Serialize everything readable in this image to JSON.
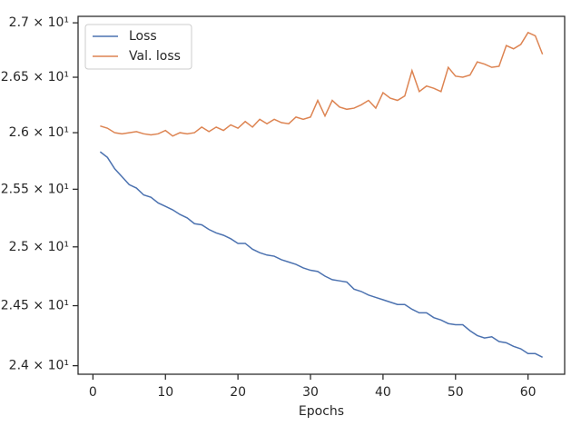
{
  "chart_data": {
    "type": "line",
    "x_label": "Epochs",
    "x": [
      1,
      2,
      3,
      4,
      5,
      6,
      7,
      8,
      9,
      10,
      11,
      12,
      13,
      14,
      15,
      16,
      17,
      18,
      19,
      20,
      21,
      22,
      23,
      24,
      25,
      26,
      27,
      28,
      29,
      30,
      31,
      32,
      33,
      34,
      35,
      36,
      37,
      38,
      39,
      40,
      41,
      42,
      43,
      44,
      45,
      46,
      47,
      48,
      49,
      50,
      51,
      52,
      53,
      54,
      55,
      56,
      57,
      58,
      59,
      60,
      61,
      62
    ],
    "series": [
      {
        "name": "Loss",
        "color": "#4c72b0",
        "values": [
          25.83,
          25.78,
          25.68,
          25.61,
          25.54,
          25.51,
          25.45,
          25.43,
          25.38,
          25.35,
          25.32,
          25.28,
          25.25,
          25.2,
          25.19,
          25.15,
          25.12,
          25.1,
          25.07,
          25.03,
          25.03,
          24.98,
          24.95,
          24.93,
          24.92,
          24.89,
          24.87,
          24.85,
          24.82,
          24.8,
          24.79,
          24.75,
          24.72,
          24.71,
          24.7,
          24.64,
          24.62,
          24.59,
          24.57,
          24.55,
          24.53,
          24.51,
          24.51,
          24.47,
          24.44,
          24.44,
          24.4,
          24.38,
          24.35,
          24.34,
          24.34,
          24.29,
          24.25,
          24.23,
          24.24,
          24.2,
          24.19,
          24.16,
          24.14,
          24.1,
          24.1,
          24.07
        ]
      },
      {
        "name": "Val. loss",
        "color": "#dd8452",
        "values": [
          26.06,
          26.04,
          26.0,
          25.99,
          26.0,
          26.01,
          25.99,
          25.98,
          25.99,
          26.02,
          25.97,
          26.0,
          25.99,
          26.0,
          26.05,
          26.01,
          26.05,
          26.02,
          26.07,
          26.04,
          26.1,
          26.05,
          26.12,
          26.08,
          26.12,
          26.09,
          26.08,
          26.14,
          26.12,
          26.14,
          26.29,
          26.15,
          26.29,
          26.23,
          26.21,
          26.22,
          26.25,
          26.29,
          26.22,
          26.36,
          26.31,
          26.29,
          26.33,
          26.56,
          26.37,
          26.42,
          26.4,
          26.37,
          26.59,
          26.51,
          26.5,
          26.52,
          26.64,
          26.62,
          26.59,
          26.6,
          26.79,
          26.76,
          26.8,
          26.91,
          26.88,
          26.71
        ]
      }
    ],
    "xlim": [
      -2.05,
      65.05
    ],
    "xticks": [
      0,
      10,
      20,
      30,
      40,
      50,
      60
    ],
    "ylim": [
      23.93,
      27.06
    ],
    "y_scale": "log",
    "yticks": [
      {
        "value": 24,
        "label": "2.4 × 10¹"
      },
      {
        "value": 24.5,
        "label": "2.45 × 10¹"
      },
      {
        "value": 25,
        "label": "2.5 × 10¹"
      },
      {
        "value": 25.5,
        "label": "2.55 × 10¹"
      },
      {
        "value": 26,
        "label": "2.6 × 10¹"
      },
      {
        "value": 26.5,
        "label": "2.65 × 10¹"
      },
      {
        "value": 27,
        "label": "2.7 × 10¹"
      }
    ],
    "legend": "upper left"
  }
}
